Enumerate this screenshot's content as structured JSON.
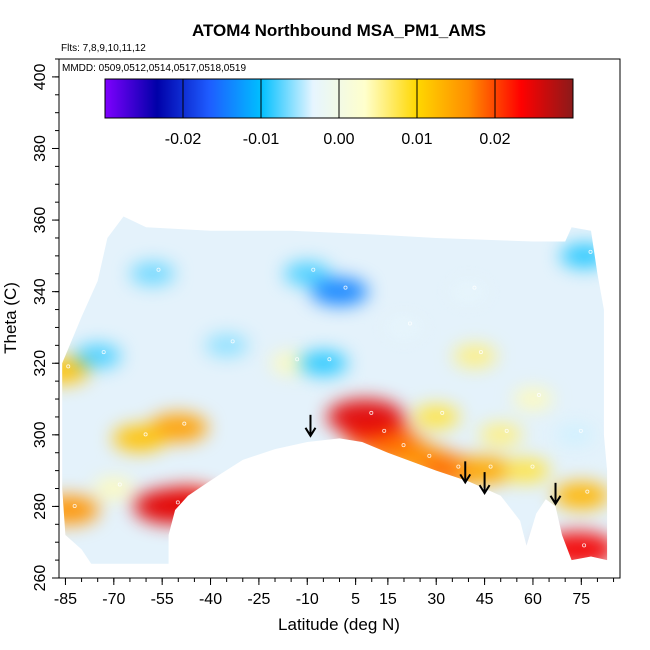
{
  "chart_data": {
    "type": "heatmap",
    "title": "ATOM4 Northbound MSA_PM1_AMS",
    "notes": {
      "flights": "Flts: 7,8,9,10,11,12",
      "dates": "MMDD: 0509,0512,0514,0517,0518,0519"
    },
    "xlabel": "Latitude (deg N)",
    "ylabel": "Theta (C)",
    "xlim": [
      -87,
      87
    ],
    "ylim": [
      260,
      405
    ],
    "xticks": [
      -85,
      -70,
      -55,
      -40,
      -25,
      -10,
      5,
      15,
      30,
      45,
      60,
      75
    ],
    "yticks": [
      260,
      280,
      300,
      320,
      340,
      360,
      380,
      400
    ],
    "colorbar": {
      "range": [
        -0.03,
        0.03
      ],
      "ticks": [
        -0.02,
        -0.01,
        0.0,
        0.01,
        0.02
      ],
      "tick_labels": [
        "-0.02",
        "-0.01",
        "0.00",
        "0.01",
        "0.02"
      ],
      "colors": [
        "#7f00ff",
        "#0000a8",
        "#1e5cff",
        "#00bfff",
        "#e6f5ff",
        "#ffffcc",
        "#ffd700",
        "#ff8c00",
        "#ff0000",
        "#8b1a1a"
      ]
    },
    "domain_top": [
      [
        -72,
        355
      ],
      [
        -67,
        361
      ],
      [
        -60,
        358
      ],
      [
        -40,
        357
      ],
      [
        -15,
        357
      ],
      [
        10,
        356
      ],
      [
        30,
        355
      ],
      [
        60,
        354
      ],
      [
        70,
        354
      ],
      [
        72,
        358
      ],
      [
        78,
        357
      ],
      [
        80,
        345
      ],
      [
        82,
        335
      ],
      [
        82,
        300
      ],
      [
        83,
        290
      ],
      [
        83,
        265
      ]
    ],
    "domain_bottom": [
      [
        83,
        265
      ],
      [
        78,
        266
      ],
      [
        72,
        265
      ],
      [
        69,
        272
      ],
      [
        67,
        280
      ],
      [
        64,
        282
      ],
      [
        61,
        278
      ],
      [
        58,
        269
      ],
      [
        56,
        276
      ],
      [
        50,
        283
      ],
      [
        45,
        285
      ],
      [
        40,
        287
      ],
      [
        30,
        290
      ],
      [
        15,
        295
      ],
      [
        7,
        298
      ],
      [
        0,
        299
      ],
      [
        -10,
        298
      ],
      [
        -20,
        296
      ],
      [
        -30,
        293
      ],
      [
        -37,
        289
      ],
      [
        -42,
        286
      ],
      [
        -47,
        283
      ],
      [
        -51,
        279
      ],
      [
        -53,
        272
      ],
      [
        -53,
        264
      ],
      [
        -77,
        264
      ],
      [
        -80,
        268
      ],
      [
        -85,
        272
      ],
      [
        -86,
        285
      ],
      [
        -86,
        300
      ],
      [
        -86,
        320
      ],
      [
        -80,
        333
      ],
      [
        -75,
        343
      ],
      [
        -72,
        355
      ]
    ],
    "anomalies": [
      {
        "lat": -50,
        "theta": 302,
        "value": 0.015
      },
      {
        "lat": -62,
        "theta": 299,
        "value": 0.012
      },
      {
        "lat": -47,
        "theta": 281,
        "value": 0.022
      },
      {
        "lat": -52,
        "theta": 280,
        "value": 0.025
      },
      {
        "lat": -84,
        "theta": 279,
        "value": 0.016
      },
      {
        "lat": -86,
        "theta": 318,
        "value": 0.012
      },
      {
        "lat": -75,
        "theta": 322,
        "value": -0.008
      },
      {
        "lat": -70,
        "theta": 285,
        "value": 0.004
      },
      {
        "lat": -58,
        "theta": 345,
        "value": -0.007
      },
      {
        "lat": -35,
        "theta": 325,
        "value": -0.006
      },
      {
        "lat": -15,
        "theta": 320,
        "value": 0.004
      },
      {
        "lat": -5,
        "theta": 320,
        "value": -0.009
      },
      {
        "lat": 0,
        "theta": 340,
        "value": -0.014
      },
      {
        "lat": -10,
        "theta": 345,
        "value": -0.008
      },
      {
        "lat": 12,
        "theta": 300,
        "value": 0.02
      },
      {
        "lat": 8,
        "theta": 305,
        "value": 0.025
      },
      {
        "lat": 18,
        "theta": 296,
        "value": 0.018
      },
      {
        "lat": 26,
        "theta": 293,
        "value": 0.016
      },
      {
        "lat": 35,
        "theta": 290,
        "value": 0.018
      },
      {
        "lat": 45,
        "theta": 290,
        "value": 0.014
      },
      {
        "lat": 30,
        "theta": 305,
        "value": 0.008
      },
      {
        "lat": 50,
        "theta": 300,
        "value": 0.006
      },
      {
        "lat": 58,
        "theta": 290,
        "value": 0.008
      },
      {
        "lat": 75,
        "theta": 283,
        "value": 0.013
      },
      {
        "lat": 74,
        "theta": 268,
        "value": 0.024
      },
      {
        "lat": 73,
        "theta": 300,
        "value": -0.004
      },
      {
        "lat": 76,
        "theta": 350,
        "value": -0.009
      },
      {
        "lat": 40,
        "theta": 340,
        "value": -0.003
      },
      {
        "lat": 42,
        "theta": 322,
        "value": 0.006
      },
      {
        "lat": 60,
        "theta": 310,
        "value": 0.004
      },
      {
        "lat": -30,
        "theta": 275,
        "value": 0.003
      },
      {
        "lat": 20,
        "theta": 330,
        "value": -0.003
      }
    ],
    "arrows": [
      {
        "lat": -9,
        "theta": 300
      },
      {
        "lat": 39,
        "theta": 287
      },
      {
        "lat": 45,
        "theta": 284
      },
      {
        "lat": 67,
        "theta": 281
      }
    ]
  }
}
